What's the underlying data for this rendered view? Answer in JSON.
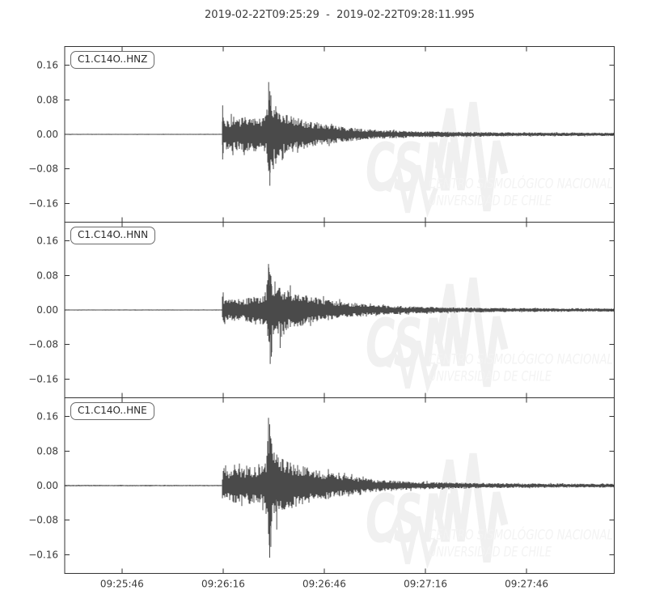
{
  "title": "2019-02-22T09:25:29  -  2019-02-22T09:28:11.995",
  "watermark": {
    "acronym": "CSN",
    "line1": "CENTRO SISMOLÓGICO NACIONAL",
    "line2": "UNIVERSIDAD DE CHILE"
  },
  "colors": {
    "background": "#ffffff",
    "trace": "#4a4a4a",
    "frame": "#333333",
    "tick_text": "#3a3a3a",
    "watermark_glyph": "#f0f0f0",
    "watermark_text": "#f3f3f3"
  },
  "chart_data": {
    "type": "line",
    "kind": "seismogram-3-channel",
    "title": "2019-02-22T09:25:29  -  2019-02-22T09:28:11.995",
    "time_start": "2019-02-22T09:25:29",
    "time_end": "2019-02-22T09:28:11.995",
    "duration_s": 162.995,
    "grid": false,
    "ylim": [
      -0.2033,
      0.2033
    ],
    "y_ticks": [
      {
        "value": 0.16,
        "label": "0.16"
      },
      {
        "value": 0.08,
        "label": "0.08"
      },
      {
        "value": 0.0,
        "label": "0.00"
      },
      {
        "value": -0.08,
        "label": "−0.08"
      },
      {
        "value": -0.16,
        "label": "−0.16"
      }
    ],
    "x_ticks": [
      {
        "t": 17,
        "label": "09:25:46"
      },
      {
        "t": 47,
        "label": "09:26:16"
      },
      {
        "t": 77,
        "label": "09:26:46"
      },
      {
        "t": 107,
        "label": "09:27:16"
      },
      {
        "t": 137,
        "label": "09:27:46"
      }
    ],
    "panels": [
      {
        "id": "HNZ",
        "label": "C1.C14O..HNZ",
        "seed": 11,
        "p_arrival_s": 46.8,
        "s_arrival_s": 60.3,
        "peak_amplitude": 0.121,
        "min_amplitude": -0.119,
        "envelope": [
          [
            0,
            0.0012
          ],
          [
            46.55,
            0.0012
          ],
          [
            46.8,
            0.06
          ],
          [
            47.3,
            0.036
          ],
          [
            48.5,
            0.034
          ],
          [
            50,
            0.042
          ],
          [
            51.5,
            0.035
          ],
          [
            53,
            0.041
          ],
          [
            55,
            0.037
          ],
          [
            57,
            0.043
          ],
          [
            58.5,
            0.037
          ],
          [
            59.8,
            0.046
          ],
          [
            60.3,
            0.1
          ],
          [
            60.7,
            0.12
          ],
          [
            61.1,
            0.1
          ],
          [
            61.5,
            0.08
          ],
          [
            61.9,
            0.062
          ],
          [
            63.5,
            0.052
          ],
          [
            66,
            0.045
          ],
          [
            69,
            0.038
          ],
          [
            73,
            0.03
          ],
          [
            77,
            0.024
          ],
          [
            83,
            0.017
          ],
          [
            91,
            0.011
          ],
          [
            101,
            0.008
          ],
          [
            115,
            0.006
          ],
          [
            135,
            0.0045
          ],
          [
            163,
            0.004
          ]
        ],
        "spikes": [
          {
            "t": 46.85,
            "up": 0.067,
            "down": -0.058
          },
          {
            "t": 60.5,
            "up": 0.121,
            "down": -0.085
          },
          {
            "t": 60.85,
            "up": 0.1,
            "down": -0.119
          },
          {
            "t": 62.6,
            "up": 0.065,
            "down": -0.068
          }
        ]
      },
      {
        "id": "HNN",
        "label": "C1.C14O..HNN",
        "seed": 22,
        "p_arrival_s": 46.8,
        "s_arrival_s": 60.3,
        "peak_amplitude": 0.098,
        "min_amplitude": -0.125,
        "envelope": [
          [
            0,
            0.0012
          ],
          [
            46.55,
            0.0012
          ],
          [
            46.8,
            0.036
          ],
          [
            47.6,
            0.026
          ],
          [
            49,
            0.024
          ],
          [
            51,
            0.028
          ],
          [
            53,
            0.026
          ],
          [
            55,
            0.03
          ],
          [
            57,
            0.031
          ],
          [
            58.8,
            0.034
          ],
          [
            59.8,
            0.05
          ],
          [
            60.3,
            0.09
          ],
          [
            60.8,
            0.112
          ],
          [
            61.2,
            0.095
          ],
          [
            61.6,
            0.075
          ],
          [
            63,
            0.06
          ],
          [
            65,
            0.05
          ],
          [
            68,
            0.042
          ],
          [
            72,
            0.033
          ],
          [
            77,
            0.025
          ],
          [
            83,
            0.018
          ],
          [
            91,
            0.012
          ],
          [
            101,
            0.0085
          ],
          [
            115,
            0.006
          ],
          [
            135,
            0.0045
          ],
          [
            163,
            0.004
          ]
        ],
        "spikes": [
          {
            "t": 60.55,
            "up": 0.098,
            "down": -0.072
          },
          {
            "t": 60.95,
            "up": 0.082,
            "down": -0.125
          },
          {
            "t": 61.3,
            "up": 0.06,
            "down": -0.108
          },
          {
            "t": 63.9,
            "up": 0.042,
            "down": -0.088
          }
        ]
      },
      {
        "id": "HNE",
        "label": "C1.C14O..HNE",
        "seed": 33,
        "p_arrival_s": 46.9,
        "s_arrival_s": 60.3,
        "peak_amplitude": 0.158,
        "min_amplitude": -0.167,
        "envelope": [
          [
            0,
            0.0015
          ],
          [
            46.55,
            0.0015
          ],
          [
            46.9,
            0.046
          ],
          [
            47.8,
            0.036
          ],
          [
            49.5,
            0.038
          ],
          [
            51.5,
            0.042
          ],
          [
            53.5,
            0.039
          ],
          [
            55.5,
            0.044
          ],
          [
            57.5,
            0.042
          ],
          [
            59,
            0.048
          ],
          [
            59.9,
            0.07
          ],
          [
            60.3,
            0.14
          ],
          [
            60.75,
            0.158
          ],
          [
            61.2,
            0.12
          ],
          [
            61.6,
            0.088
          ],
          [
            63,
            0.07
          ],
          [
            65,
            0.06
          ],
          [
            69,
            0.048
          ],
          [
            74,
            0.038
          ],
          [
            80,
            0.028
          ],
          [
            86,
            0.02
          ],
          [
            94,
            0.013
          ],
          [
            104,
            0.009
          ],
          [
            118,
            0.0065
          ],
          [
            140,
            0.005
          ],
          [
            163,
            0.0045
          ]
        ],
        "spikes": [
          {
            "t": 60.45,
            "up": 0.157,
            "down": -0.112
          },
          {
            "t": 60.8,
            "up": 0.142,
            "down": -0.167
          },
          {
            "t": 61.15,
            "up": 0.1,
            "down": -0.142
          },
          {
            "t": 62.9,
            "up": 0.072,
            "down": -0.102
          }
        ]
      }
    ]
  }
}
